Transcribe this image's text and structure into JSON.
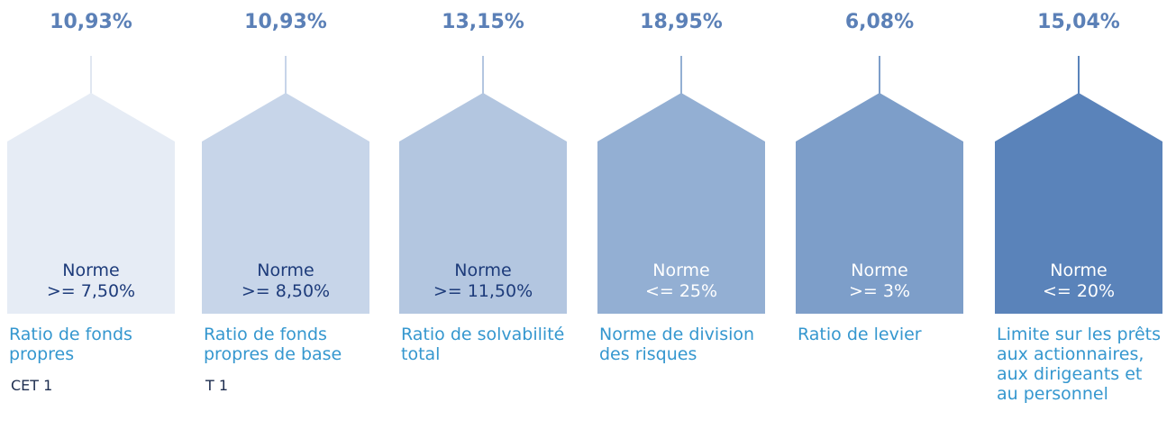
{
  "items": [
    {
      "value": "10,93%",
      "norm_title": "Norme",
      "norm_value": ">= 7,50%",
      "label": "Ratio de fonds propres",
      "sub": "CET 1",
      "color": "#e6ecf5",
      "line_color": "#e0e7f1",
      "norm_color": "#1d3b7a"
    },
    {
      "value": "10,93%",
      "norm_title": "Norme",
      "norm_value": ">= 8,50%",
      "label": "Ratio de fonds propres de base",
      "sub": "T 1",
      "color": "#c7d5e9",
      "line_color": "#c7d5e9",
      "norm_color": "#1d3b7a"
    },
    {
      "value": "13,15%",
      "norm_title": "Norme",
      "norm_value": ">= 11,50%",
      "label": "Ratio de solvabilité total",
      "color": "#b3c6e0",
      "line_color": "#b3c6e0",
      "norm_color": "#1d3b7a"
    },
    {
      "value": "18,95%",
      "norm_title": "Norme",
      "norm_value": "<= 25%",
      "label": "Norme de division des risques",
      "color": "#93afd3",
      "line_color": "#93afd3",
      "norm_color": "#ffffff"
    },
    {
      "value": "6,08%",
      "norm_title": "Norme",
      "norm_value": ">= 3%",
      "label": "Ratio de levier",
      "color": "#7d9ec9",
      "line_color": "#7d9ec9",
      "norm_color": "#ffffff"
    },
    {
      "value": "15,04%",
      "norm_title": "Norme",
      "norm_value": "<= 20%",
      "label": "Limite sur les prêts aux actionnaires, aux dirigeants et au personnel",
      "color": "#5a83ba",
      "line_color": "#5a83ba",
      "norm_color": "#ffffff"
    }
  ]
}
